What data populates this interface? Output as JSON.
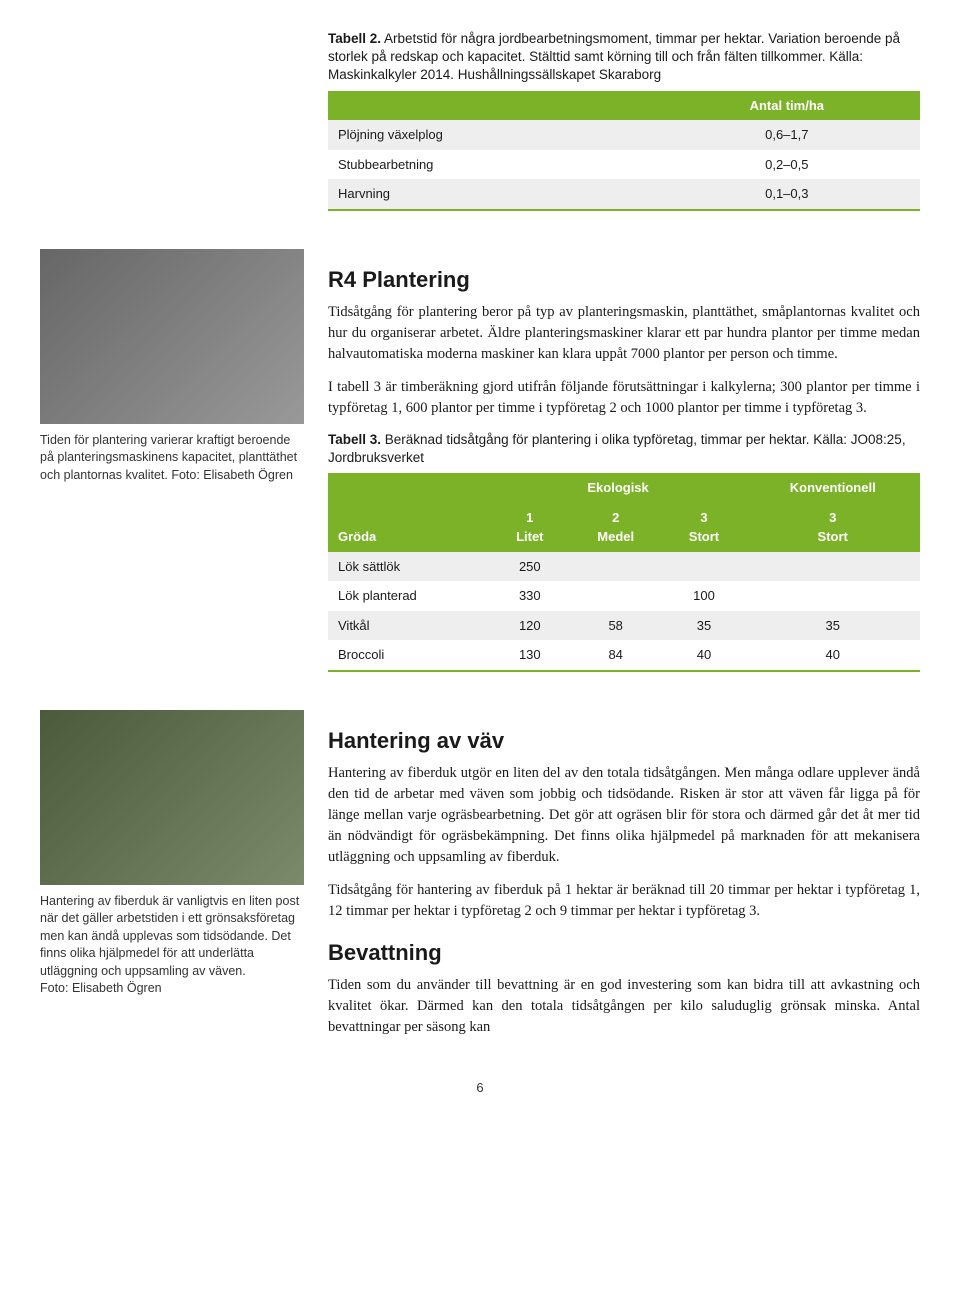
{
  "colors": {
    "header_green": "#7cb227",
    "row_alt": "#eeeeee",
    "row_base": "#ffffff",
    "border_green": "#7cb227"
  },
  "table2": {
    "title_bold": "Tabell 2.",
    "title_rest": " Arbetstid för några jordbearbetningsmoment, timmar per hektar. Variation beroende på storlek på redskap och kapacitet. Stälttid samt körning till och från fälten tillkommer. Källa: Maskinkalkyler 2014. Hushållningssällskapet Skaraborg",
    "header": "Antal tim/ha",
    "rows": [
      {
        "label": "Plöjning växelplog",
        "value": "0,6–1,7"
      },
      {
        "label": "Stubbearbetning",
        "value": "0,2–0,5"
      },
      {
        "label": "Harvning",
        "value": "0,1–0,3"
      }
    ]
  },
  "r4": {
    "heading": "R4 Plantering",
    "p1": "Tidsåtgång för plantering beror på typ av planteringsmaskin, planttäthet, småplantornas kvalitet och hur du organiserar arbetet. Äldre planteringsmaskiner klarar ett par hundra plantor per timme medan halvautomatiska moderna maskiner kan klara uppåt 7000 plantor per person och timme.",
    "p2": "I tabell 3 är timberäkning gjord utifrån följande förutsättningar i kalkylerna; 300 plantor per timme i typföretag 1, 600 plantor per timme i typföretag 2 och 1000 plantor per timme i typföretag 3.",
    "caption": "Tiden för plantering varierar kraftigt beroende på planteringsmaskinens kapacitet, planttäthet och plantornas kvalitet. Foto: Elisabeth Ögren"
  },
  "table3": {
    "title_bold": "Tabell 3.",
    "title_rest": " Beräknad tidsåtgång för plantering i olika typföretag, timmar per hektar. Källa: JO08:25, Jordbruksverket",
    "top_headers": {
      "eco": "Ekologisk",
      "conv": "Konventionell"
    },
    "sub_headers": {
      "crop": "Gröda",
      "c1": "1\nLitet",
      "c2": "2\nMedel",
      "c3": "3\nStort",
      "c4": "3\nStort"
    },
    "rows": [
      {
        "crop": "Lök sättlök",
        "c1": "250",
        "c2": "",
        "c3": "",
        "c4": ""
      },
      {
        "crop": "Lök planterad",
        "c1": "330",
        "c2": "",
        "c3": "100",
        "c4": ""
      },
      {
        "crop": "Vitkål",
        "c1": "120",
        "c2": "58",
        "c3": "35",
        "c4": "35"
      },
      {
        "crop": "Broccoli",
        "c1": "130",
        "c2": "84",
        "c3": "40",
        "c4": "40"
      }
    ]
  },
  "vav": {
    "heading": "Hantering av väv",
    "p1": "Hantering av fiberduk utgör en liten del av den totala tidsåtgången. Men många odlare upplever ändå den tid de arbetar med väven som jobbig och tidsödande. Risken är stor att väven får ligga på för länge mellan varje ogräsbearbetning. Det gör att ogräsen blir för stora och därmed går det åt mer tid än nödvändigt för ogräsbekämpning. Det finns olika hjälpmedel på marknaden för att mekanisera utläggning och uppsamling av fiberduk.",
    "p2": "Tidsåtgång för hantering av fiberduk på 1 hektar är beräknad till 20 timmar per hektar i typföretag 1, 12 timmar per hektar i typföretag 2 och 9 timmar per hektar i typföretag 3.",
    "caption": "Hantering av fiberduk är vanligtvis en liten post när det gäller arbetstiden i ett grönsaksföretag men kan ändå upplevas som tidsödande. Det finns olika hjälpmedel för att underlätta utläggning och uppsamling av väven.\nFoto: Elisabeth Ögren"
  },
  "bevattning": {
    "heading": "Bevattning",
    "p1": "Tiden som du använder till bevattning är en god investering som kan bidra till att avkastning och kvalitet ökar. Därmed kan den totala tidsåtgången per kilo saluduglig grönsak minska. Antal bevattningar per säsong kan"
  },
  "page_number": "6"
}
